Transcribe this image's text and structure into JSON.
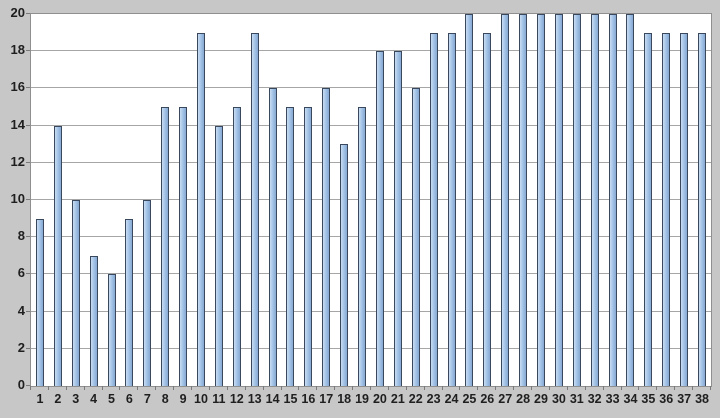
{
  "chart_data": {
    "type": "bar",
    "title": "",
    "xlabel": "",
    "ylabel": "",
    "categories": [
      "1",
      "2",
      "3",
      "4",
      "5",
      "6",
      "7",
      "8",
      "9",
      "10",
      "11",
      "12",
      "13",
      "14",
      "15",
      "16",
      "17",
      "18",
      "19",
      "20",
      "21",
      "22",
      "23",
      "24",
      "25",
      "26",
      "27",
      "28",
      "29",
      "30",
      "31",
      "32",
      "33",
      "34",
      "35",
      "36",
      "37",
      "38"
    ],
    "values": [
      9,
      14,
      10,
      7,
      6,
      9,
      10,
      15,
      15,
      19,
      14,
      15,
      19,
      16,
      15,
      15,
      16,
      13,
      15,
      18,
      18,
      16,
      19,
      19,
      20,
      19,
      20,
      20,
      20,
      20,
      20,
      20,
      20,
      20,
      19,
      19,
      19,
      19
    ],
    "ylim": [
      0,
      20
    ],
    "ytick_step": 2,
    "ytick_labels": [
      "0",
      "2",
      "4",
      "6",
      "8",
      "10",
      "12",
      "14",
      "16",
      "18",
      "20"
    ],
    "grid": true,
    "legend": false,
    "colors": {
      "background": "#c7c7c7",
      "plot_background": "#ffffff",
      "gridline": "#a6a6a6",
      "axis_line": "#8f8f8f",
      "tick": "#7a7a7a",
      "bar_fill_light": "#c9ddf2",
      "bar_fill_mid": "#a6c5e8",
      "bar_fill_dark": "#87a9d3",
      "bar_border": "#39485c",
      "label_text": "#1f1f1f"
    }
  }
}
